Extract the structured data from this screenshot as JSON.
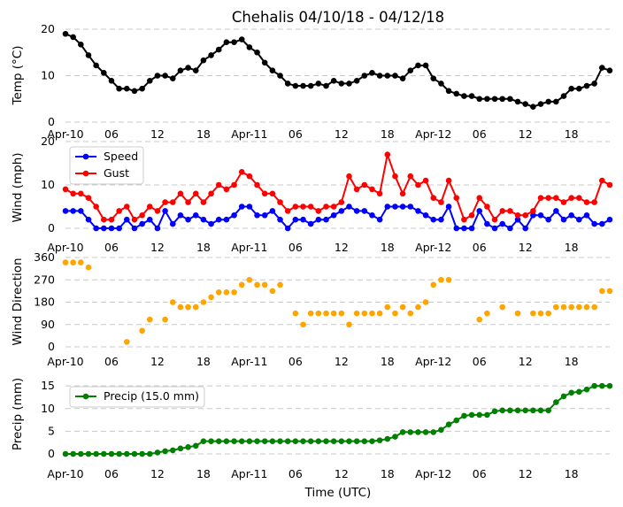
{
  "chart_data": {
    "title": "Chehalis 04/10/18 - 04/12/18",
    "xlabel": "Time (UTC)",
    "x_tick_labels": [
      "Apr-10",
      "06",
      "12",
      "18",
      "Apr-11",
      "06",
      "12",
      "18",
      "Apr-12",
      "06",
      "12",
      "18"
    ],
    "x_tick_hours": [
      0,
      6,
      12,
      18,
      24,
      30,
      36,
      42,
      48,
      54,
      60,
      66
    ],
    "x_range_hours": [
      0,
      71
    ],
    "panels": [
      {
        "id": "temp",
        "type": "line",
        "ylabel": "Temp (°C)",
        "ylim": [
          0,
          20
        ],
        "yticks": [
          0,
          10,
          20
        ],
        "series": [
          {
            "name": "Temp",
            "color": "#000000",
            "values": [
              19,
              18.3,
              16.7,
              14.4,
              12.2,
              10.6,
              8.9,
              7.2,
              7.2,
              6.7,
              7.2,
              8.9,
              10,
              10,
              9.4,
              11.1,
              11.7,
              11.1,
              13.3,
              14.4,
              15.6,
              17.2,
              17.2,
              17.8,
              16.1,
              15,
              12.8,
              11.1,
              10,
              8.3,
              7.8,
              7.8,
              7.8,
              8.3,
              7.8,
              8.9,
              8.3,
              8.3,
              8.9,
              10,
              10.6,
              10,
              10,
              10,
              9.4,
              11.1,
              12.2,
              12.2,
              9.4,
              8.3,
              6.7,
              6.1,
              5.6,
              5.6,
              5,
              5,
              5,
              5,
              5,
              4.4,
              3.9,
              3.3,
              3.9,
              4.4,
              4.4,
              5.6,
              7.2,
              7.2,
              7.8,
              8.3,
              11.7,
              11.1
            ]
          }
        ]
      },
      {
        "id": "wind",
        "type": "line",
        "ylabel": "Wind (mph)",
        "ylim": [
          0,
          20
        ],
        "yticks": [
          0,
          10,
          20
        ],
        "legend_position": "top-left",
        "series": [
          {
            "name": "Speed",
            "color": "#0000ff",
            "values": [
              4,
              4,
              4,
              2,
              0,
              0,
              0,
              0,
              2,
              0,
              1,
              2,
              0,
              4,
              1,
              3,
              2,
              3,
              2,
              1,
              2,
              2,
              3,
              5,
              5,
              3,
              3,
              4,
              2,
              0,
              2,
              2,
              1,
              2,
              2,
              3,
              4,
              5,
              4,
              4,
              3,
              2,
              5,
              5,
              5,
              5,
              4,
              3,
              2,
              2,
              5,
              0,
              0,
              0,
              4,
              1,
              0,
              1,
              0,
              2,
              0,
              3,
              3,
              2,
              4,
              2,
              3,
              2,
              3,
              1,
              1,
              2
            ]
          },
          {
            "name": "Gust",
            "color": "#ff0000",
            "values": [
              9,
              8,
              8,
              7,
              5,
              2,
              2,
              4,
              5,
              2,
              3,
              5,
              4,
              6,
              6,
              8,
              6,
              8,
              6,
              8,
              10,
              9,
              10,
              13,
              12,
              10,
              8,
              8,
              6,
              4,
              5,
              5,
              5,
              4,
              5,
              5,
              6,
              12,
              9,
              10,
              9,
              8,
              17,
              12,
              8,
              12,
              10,
              11,
              7,
              6,
              11,
              7,
              2,
              3,
              7,
              5,
              2,
              4,
              4,
              3,
              3,
              4,
              7,
              7,
              7,
              6,
              7,
              7,
              6,
              6,
              11,
              10
            ]
          }
        ]
      },
      {
        "id": "direction",
        "type": "scatter",
        "ylabel": "Wind Direction",
        "ylim": [
          0,
          360
        ],
        "yticks": [
          0,
          90,
          180,
          270,
          360
        ],
        "series": [
          {
            "name": "Direction",
            "color": "#ffa500",
            "values": [
              340,
              340,
              340,
              320,
              null,
              null,
              null,
              null,
              20,
              null,
              65,
              110,
              null,
              110,
              180,
              160,
              160,
              160,
              180,
              200,
              220,
              220,
              220,
              250,
              270,
              250,
              250,
              225,
              250,
              null,
              135,
              90,
              135,
              135,
              135,
              135,
              135,
              90,
              135,
              135,
              135,
              135,
              160,
              135,
              160,
              135,
              160,
              180,
              250,
              270,
              270,
              null,
              null,
              null,
              110,
              135,
              null,
              160,
              null,
              135,
              null,
              135,
              135,
              135,
              160,
              160,
              160,
              160,
              160,
              160,
              225,
              225
            ]
          }
        ]
      },
      {
        "id": "precip",
        "type": "line",
        "ylabel": "Precip (mm)",
        "ylim": [
          0,
          16
        ],
        "yticks": [
          0,
          5,
          10,
          15
        ],
        "legend_position": "top-left",
        "series": [
          {
            "name": "Precip (15.0 mm)",
            "color": "#008000",
            "values": [
              0,
              0,
              0,
              0,
              0,
              0,
              0,
              0,
              0,
              0,
              0,
              0,
              0.3,
              0.6,
              0.8,
              1.2,
              1.5,
              1.8,
              2.8,
              2.8,
              2.8,
              2.8,
              2.8,
              2.8,
              2.8,
              2.8,
              2.8,
              2.8,
              2.8,
              2.8,
              2.8,
              2.8,
              2.8,
              2.8,
              2.8,
              2.8,
              2.8,
              2.8,
              2.8,
              2.8,
              2.8,
              3,
              3.3,
              3.8,
              4.8,
              4.8,
              4.8,
              4.8,
              4.8,
              5.3,
              6.5,
              7.4,
              8.4,
              8.6,
              8.6,
              8.6,
              9.4,
              9.6,
              9.6,
              9.6,
              9.6,
              9.6,
              9.6,
              9.6,
              11.4,
              12.7,
              13.5,
              13.7,
              14.2,
              15,
              15,
              15
            ]
          }
        ]
      }
    ]
  }
}
